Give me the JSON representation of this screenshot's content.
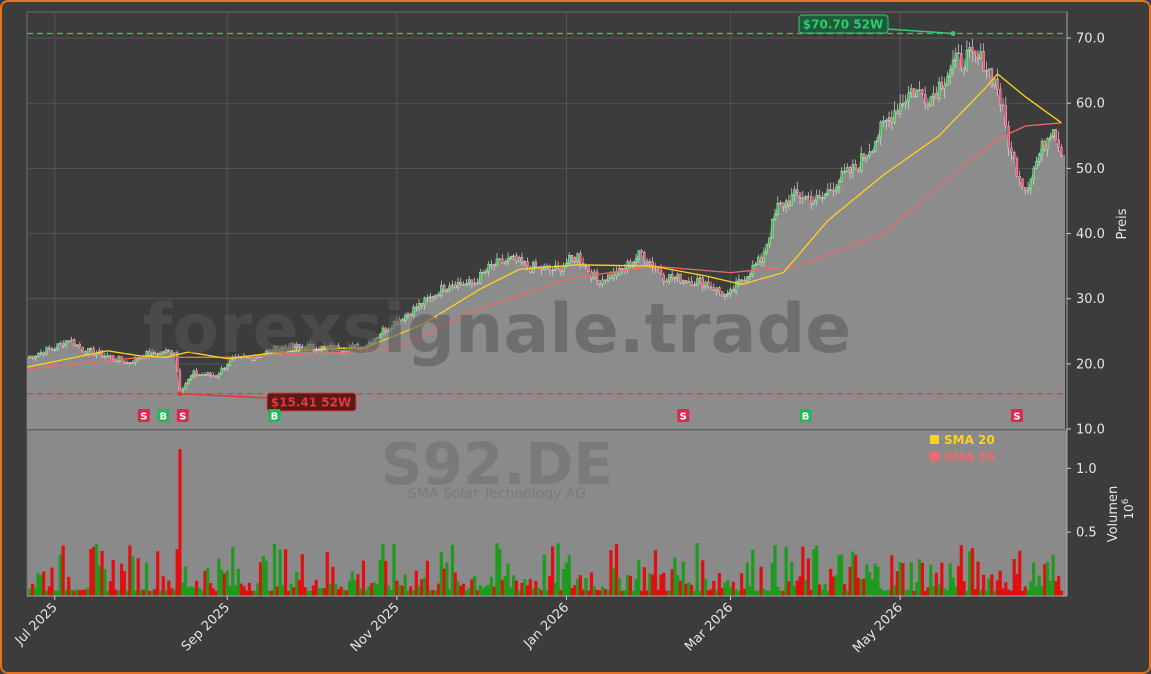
{
  "chart_data": {
    "type": "candlestick",
    "watermark": "forexsignale.trade",
    "symbol": "S92.DE",
    "company": "SMA Solar Technology AG",
    "ylabel_price": "Preis",
    "ylabel_volume": "Volumen",
    "volume_multiplier": "10",
    "volume_exponent": "6",
    "price_ylim": [
      10,
      74
    ],
    "price_ticks": [
      "10.0",
      "20.0",
      "30.0",
      "40.0",
      "50.0",
      "60.0",
      "70.0"
    ],
    "volume_ylim": [
      0,
      1.3
    ],
    "volume_ticks": [
      "0.5",
      "1.0"
    ],
    "x_ticks": [
      {
        "label": "Jul 2025",
        "date": "2025-07-01"
      },
      {
        "label": "Sep 2025",
        "date": "2025-09-01"
      },
      {
        "label": "Nov 2025",
        "date": "2025-11-01"
      },
      {
        "label": "Jan 2026",
        "date": "2026-01-01"
      },
      {
        "label": "Mar 2026",
        "date": "2026-03-01"
      },
      {
        "label": "May 2026",
        "date": "2026-05-01"
      }
    ],
    "x_range": [
      "2025-06-21",
      "2026-06-30"
    ],
    "high_52w": {
      "value": 70.7,
      "label": "$70.70 52W",
      "date": "2026-05-20"
    },
    "low_52w": {
      "value": 15.41,
      "label": "$15.41 52W",
      "date": "2025-08-15"
    },
    "legend": [
      {
        "name": "SMA 20",
        "color": "#ffd21e"
      },
      {
        "name": "SMA 50",
        "color": "#f06a6a"
      }
    ],
    "signals": [
      {
        "type": "S",
        "date": "2025-08-02"
      },
      {
        "type": "B",
        "date": "2025-08-09"
      },
      {
        "type": "S",
        "date": "2025-08-16"
      },
      {
        "type": "B",
        "date": "2025-09-18"
      },
      {
        "type": "S",
        "date": "2026-02-12"
      },
      {
        "type": "B",
        "date": "2026-03-28"
      },
      {
        "type": "S",
        "date": "2026-06-12"
      }
    ],
    "close_series": [
      {
        "date": "2025-06-21",
        "close": 21.0
      },
      {
        "date": "2025-07-01",
        "close": 22.5
      },
      {
        "date": "2025-07-06",
        "close": 23.8
      },
      {
        "date": "2025-07-12",
        "close": 22.0
      },
      {
        "date": "2025-07-20",
        "close": 21.2
      },
      {
        "date": "2025-07-27",
        "close": 20.2
      },
      {
        "date": "2025-08-03",
        "close": 21.5
      },
      {
        "date": "2025-08-09",
        "close": 21.8
      },
      {
        "date": "2025-08-13",
        "close": 22.0
      },
      {
        "date": "2025-08-15",
        "close": 16.0
      },
      {
        "date": "2025-08-20",
        "close": 18.5
      },
      {
        "date": "2025-08-28",
        "close": 18.2
      },
      {
        "date": "2025-09-02",
        "close": 20.5
      },
      {
        "date": "2025-09-10",
        "close": 21.0
      },
      {
        "date": "2025-09-20",
        "close": 22.5
      },
      {
        "date": "2025-09-30",
        "close": 22.6
      },
      {
        "date": "2025-10-10",
        "close": 22.4
      },
      {
        "date": "2025-10-20",
        "close": 22.6
      },
      {
        "date": "2025-10-28",
        "close": 25.5
      },
      {
        "date": "2025-11-05",
        "close": 27.8
      },
      {
        "date": "2025-11-12",
        "close": 29.8
      },
      {
        "date": "2025-11-20",
        "close": 32.5
      },
      {
        "date": "2025-11-28",
        "close": 32.2
      },
      {
        "date": "2025-12-05",
        "close": 35.0
      },
      {
        "date": "2025-12-12",
        "close": 36.0
      },
      {
        "date": "2025-12-19",
        "close": 34.8
      },
      {
        "date": "2025-12-28",
        "close": 34.4
      },
      {
        "date": "2026-01-05",
        "close": 36.6
      },
      {
        "date": "2026-01-12",
        "close": 32.8
      },
      {
        "date": "2026-01-20",
        "close": 34.0
      },
      {
        "date": "2026-01-28",
        "close": 37.0
      },
      {
        "date": "2026-02-05",
        "close": 33.5
      },
      {
        "date": "2026-02-12",
        "close": 33.0
      },
      {
        "date": "2026-02-20",
        "close": 32.5
      },
      {
        "date": "2026-02-28",
        "close": 30.2
      },
      {
        "date": "2026-03-05",
        "close": 33.0
      },
      {
        "date": "2026-03-12",
        "close": 36.0
      },
      {
        "date": "2026-03-18",
        "close": 44.0
      },
      {
        "date": "2026-03-25",
        "close": 46.0
      },
      {
        "date": "2026-04-02",
        "close": 45.0
      },
      {
        "date": "2026-04-08",
        "close": 48.0
      },
      {
        "date": "2026-04-15",
        "close": 50.0
      },
      {
        "date": "2026-04-22",
        "close": 54.5
      },
      {
        "date": "2026-04-29",
        "close": 59.0
      },
      {
        "date": "2026-05-05",
        "close": 62.0
      },
      {
        "date": "2026-05-12",
        "close": 61.0
      },
      {
        "date": "2026-05-20",
        "close": 66.0
      },
      {
        "date": "2026-05-25",
        "close": 67.0
      },
      {
        "date": "2026-05-31",
        "close": 66.5
      },
      {
        "date": "2026-06-05",
        "close": 62.5
      },
      {
        "date": "2026-06-10",
        "close": 52.0
      },
      {
        "date": "2026-06-15",
        "close": 47.0
      },
      {
        "date": "2026-06-20",
        "close": 52.0
      },
      {
        "date": "2026-06-25",
        "close": 57.0
      },
      {
        "date": "2026-06-28",
        "close": 52.0
      }
    ],
    "sma20_series": [
      {
        "date": "2025-06-21",
        "value": 19.5
      },
      {
        "date": "2025-07-20",
        "value": 22.0
      },
      {
        "date": "2025-08-01",
        "value": 21.2
      },
      {
        "date": "2025-08-10",
        "value": 21.0
      },
      {
        "date": "2025-08-18",
        "value": 21.8
      },
      {
        "date": "2025-09-01",
        "value": 20.8
      },
      {
        "date": "2025-09-20",
        "value": 21.8
      },
      {
        "date": "2025-10-10",
        "value": 22.4
      },
      {
        "date": "2025-10-20",
        "value": 22.4
      },
      {
        "date": "2025-11-10",
        "value": 26.0
      },
      {
        "date": "2025-12-01",
        "value": 31.5
      },
      {
        "date": "2025-12-15",
        "value": 34.5
      },
      {
        "date": "2026-01-05",
        "value": 35.2
      },
      {
        "date": "2026-02-01",
        "value": 35.0
      },
      {
        "date": "2026-02-20",
        "value": 33.5
      },
      {
        "date": "2026-03-05",
        "value": 32.2
      },
      {
        "date": "2026-03-20",
        "value": 34.0
      },
      {
        "date": "2026-04-05",
        "value": 42.0
      },
      {
        "date": "2026-04-25",
        "value": 49.0
      },
      {
        "date": "2026-05-15",
        "value": 55.0
      },
      {
        "date": "2026-06-01",
        "value": 62.5
      },
      {
        "date": "2026-06-05",
        "value": 64.5
      },
      {
        "date": "2026-06-15",
        "value": 61.0
      },
      {
        "date": "2026-06-28",
        "value": 57.0
      }
    ],
    "sma50_series": [
      {
        "date": "2025-06-21",
        "value": 19.2
      },
      {
        "date": "2025-08-01",
        "value": 21.0
      },
      {
        "date": "2025-09-01",
        "value": 21.0
      },
      {
        "date": "2025-10-15",
        "value": 21.8
      },
      {
        "date": "2025-11-01",
        "value": 22.5
      },
      {
        "date": "2025-12-01",
        "value": 28.5
      },
      {
        "date": "2026-01-01",
        "value": 33.0
      },
      {
        "date": "2026-02-01",
        "value": 35.0
      },
      {
        "date": "2026-03-01",
        "value": 34.0
      },
      {
        "date": "2026-03-25",
        "value": 35.0
      },
      {
        "date": "2026-04-25",
        "value": 40.0
      },
      {
        "date": "2026-05-20",
        "value": 49.0
      },
      {
        "date": "2026-06-05",
        "value": 54.5
      },
      {
        "date": "2026-06-15",
        "value": 56.5
      },
      {
        "date": "2026-06-28",
        "value": 57.0
      }
    ],
    "volume_notes": "Daily volume bars, green on up days and red on down days; a red spike of about 1.15 x 10^6 on 2025-08-15, most bars between 0.05 and 0.4 x 10^6."
  },
  "colors": {
    "page_background": "#3c3c3c",
    "plot_background": "#8a8a8a",
    "area_fill": "#8c8c8c",
    "up_color": "#2cc84a",
    "down_color": "#ff4d6d",
    "volume_up": "#1e9a1e",
    "volume_down": "#e01010",
    "high_line": "#2ecc71",
    "low_line": "#e03a3a",
    "grid": "#5a5a5a",
    "frame_border": "#e8701e"
  }
}
